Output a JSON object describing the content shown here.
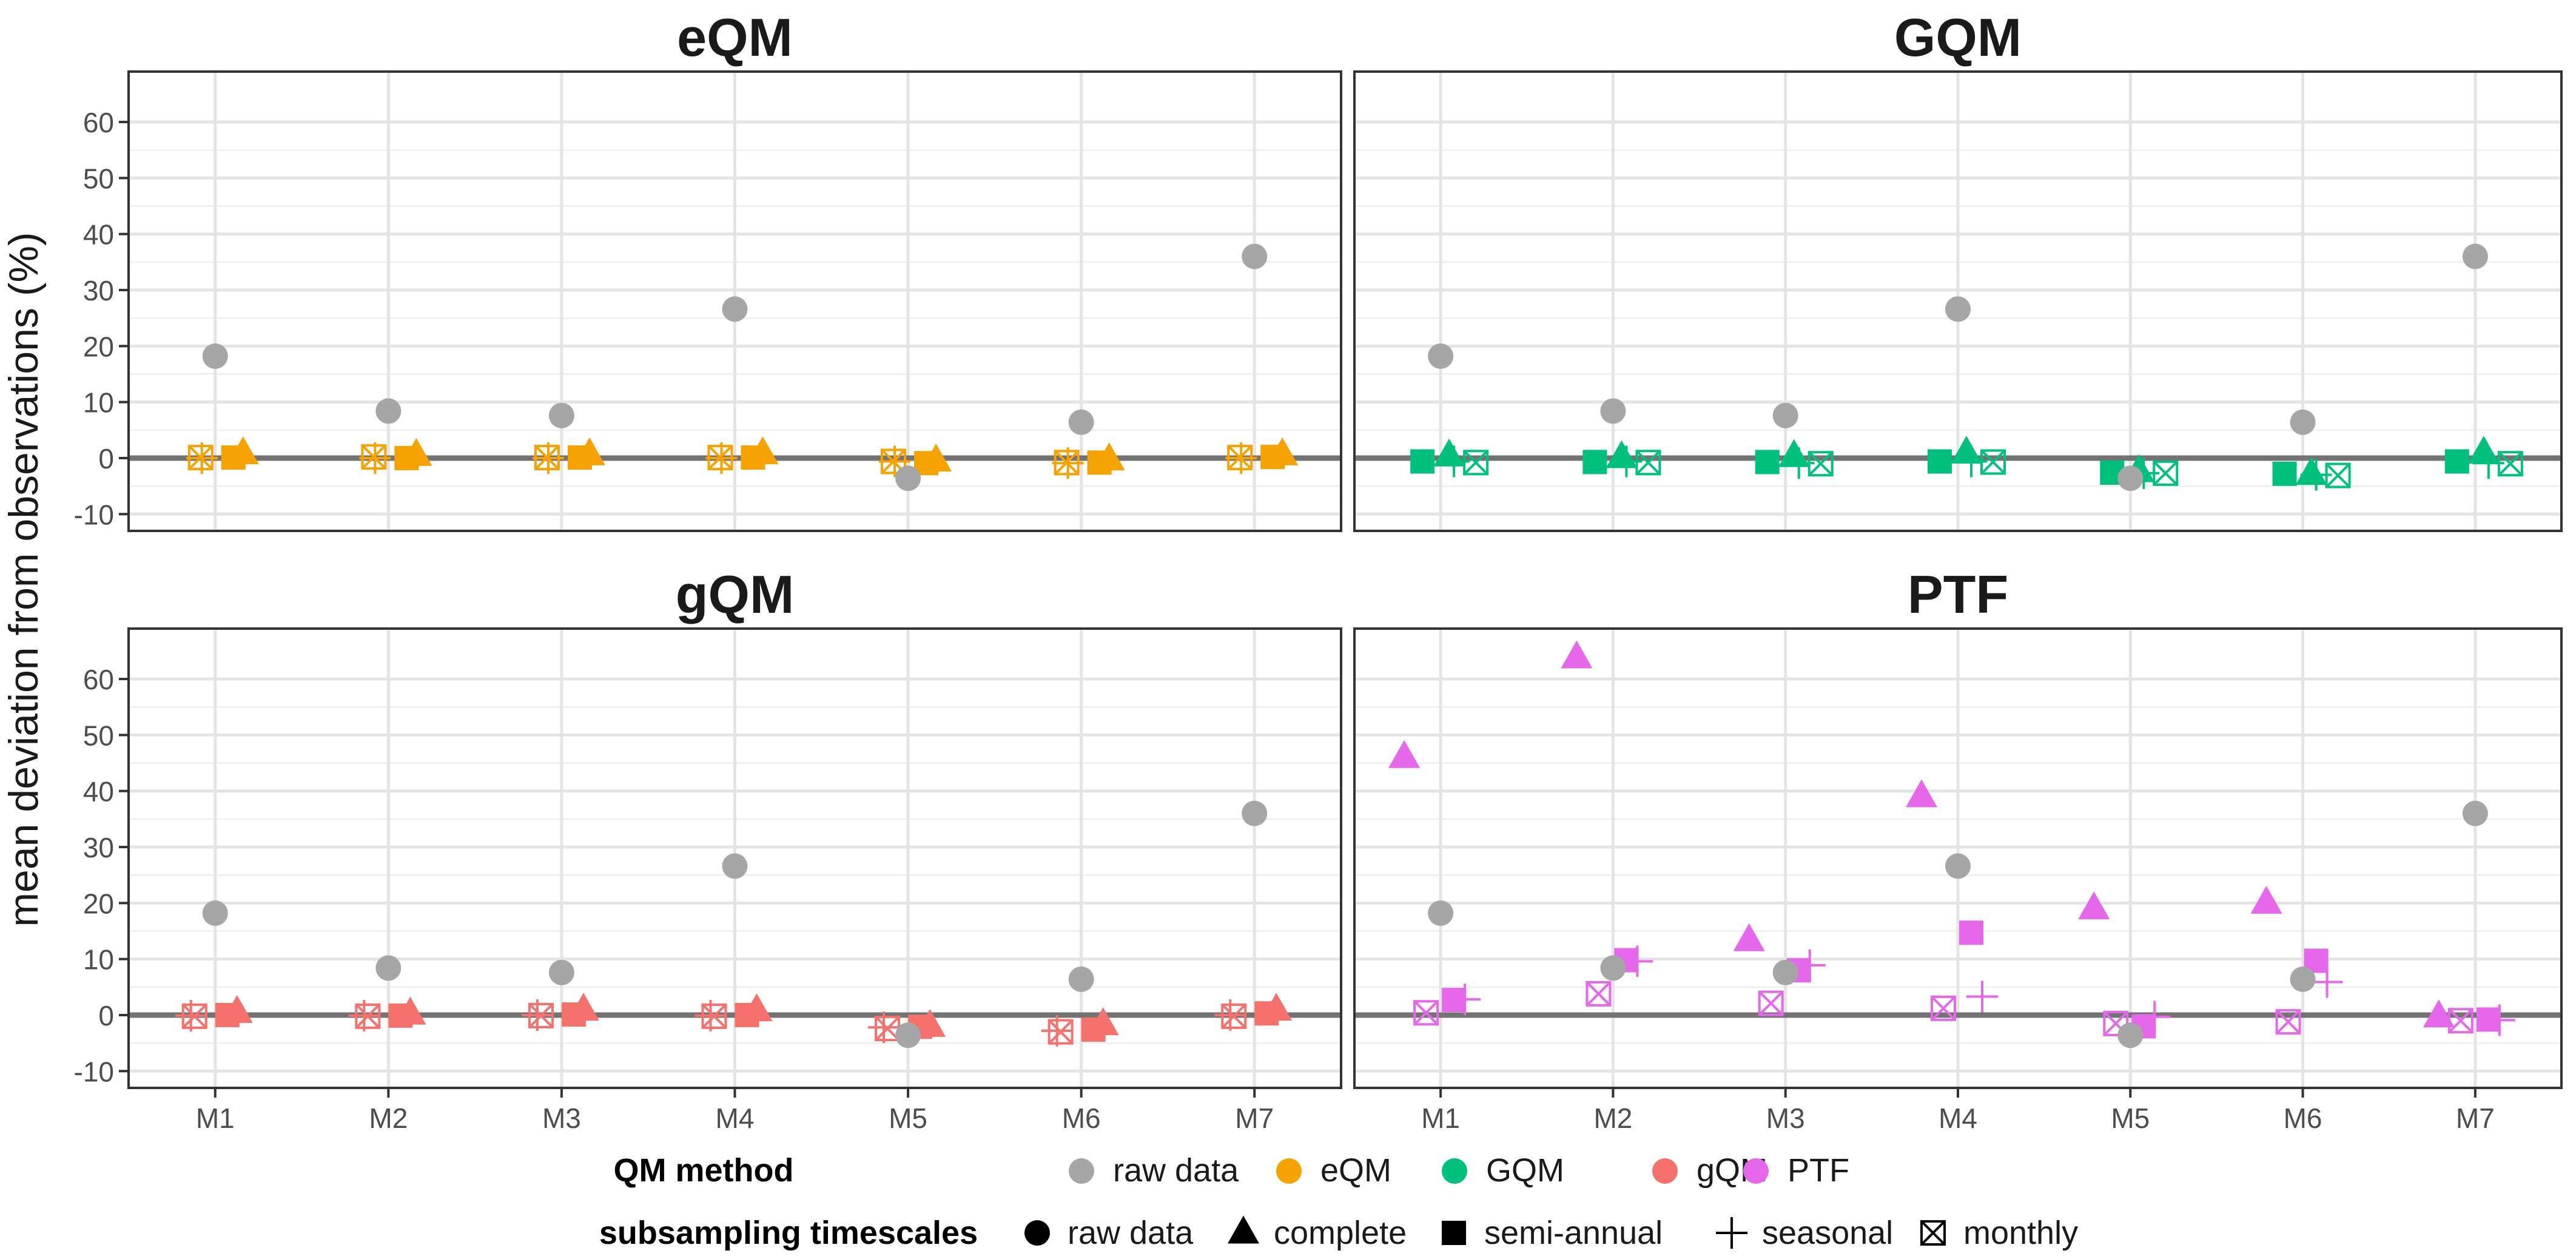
{
  "figure": {
    "ylabel": "mean deviation from observations (%)"
  },
  "legend": {
    "method_title": "QM method",
    "method_items": [
      {
        "label": "raw data",
        "color": "#a6a6a6"
      },
      {
        "label": "eQM",
        "color": "#f6a200"
      },
      {
        "label": "GQM",
        "color": "#00c07e"
      },
      {
        "label": "gQM",
        "color": "#f4726b"
      },
      {
        "label": "PTF",
        "color": "#e567ea"
      }
    ],
    "timescale_title": "subsampling timescales",
    "timescale_items": [
      {
        "label": "raw data",
        "shape": "circle"
      },
      {
        "label": "complete",
        "shape": "triangle"
      },
      {
        "label": "semi-annual",
        "shape": "square"
      },
      {
        "label": "seasonal",
        "shape": "plus"
      },
      {
        "label": "monthly",
        "shape": "boxcross"
      }
    ]
  },
  "chart_data": [
    {
      "type": "scatter",
      "title": "eQM",
      "color": "#f6a200",
      "categories": [
        "M1",
        "M2",
        "M3",
        "M4",
        "M5",
        "M6",
        "M7"
      ],
      "ylim": [
        -13,
        69
      ],
      "yticks": [
        -10,
        0,
        10,
        20,
        30,
        40,
        50,
        60
      ],
      "raw": [
        18.2,
        8.4,
        7.6,
        26.6,
        -3.6,
        6.4,
        36.0
      ],
      "points": [
        {
          "x": 1,
          "series": "complete",
          "values": [
            0.8,
            0.5,
            0.6,
            0.8,
            -0.5,
            -0.3,
            0.6
          ]
        },
        {
          "x": 2,
          "series": "semi-annual",
          "values": [
            0.1,
            0.0,
            0.1,
            0.1,
            -0.9,
            -0.8,
            0.2
          ]
        },
        {
          "x": 3,
          "series": "seasonal",
          "values": [
            0.0,
            0.0,
            0.0,
            0.0,
            -0.6,
            -0.9,
            0.0
          ]
        },
        {
          "x": 4,
          "series": "monthly",
          "values": [
            0.1,
            0.2,
            0.1,
            0.1,
            -0.6,
            -0.8,
            0.1
          ]
        }
      ]
    },
    {
      "type": "scatter",
      "title": "GQM",
      "color": "#00c07e",
      "categories": [
        "M1",
        "M2",
        "M3",
        "M4",
        "M5",
        "M6",
        "M7"
      ],
      "ylim": [
        -13,
        69
      ],
      "yticks": [
        -10,
        0,
        10,
        20,
        30,
        40,
        50,
        60
      ],
      "raw": [
        18.2,
        8.4,
        7.6,
        26.6,
        -3.6,
        6.4,
        36.0
      ],
      "points": [
        {
          "x": 1,
          "series": "complete",
          "values": [
            0.4,
            0.1,
            0.3,
            0.9,
            -2.4,
            -2.9,
            0.9
          ]
        },
        {
          "x": 2,
          "series": "semi-annual",
          "values": [
            -0.6,
            -0.7,
            -0.7,
            -0.6,
            -2.6,
            -2.8,
            -0.6
          ]
        },
        {
          "x": 3,
          "series": "seasonal",
          "values": [
            -0.6,
            -0.6,
            -0.9,
            -0.6,
            -2.7,
            -3.0,
            -0.9
          ]
        },
        {
          "x": 4,
          "series": "monthly",
          "values": [
            -0.8,
            -0.8,
            -1.0,
            -0.7,
            -2.7,
            -3.1,
            -1.0
          ]
        }
      ]
    },
    {
      "type": "scatter",
      "title": "gQM",
      "color": "#f4726b",
      "categories": [
        "M1",
        "M2",
        "M3",
        "M4",
        "M5",
        "M6",
        "M7"
      ],
      "ylim": [
        -13,
        69
      ],
      "yticks": [
        -10,
        0,
        10,
        20,
        30,
        40,
        50,
        60
      ],
      "raw": [
        18.2,
        8.4,
        7.6,
        26.6,
        -3.6,
        6.4,
        36.0
      ],
      "points": [
        {
          "x": 1,
          "series": "complete",
          "values": [
            0.5,
            0.2,
            0.9,
            0.8,
            -2.0,
            -1.7,
            0.9
          ]
        },
        {
          "x": 2,
          "series": "semi-annual",
          "values": [
            0.0,
            -0.1,
            0.1,
            0.0,
            -2.1,
            -2.6,
            0.3
          ]
        },
        {
          "x": 3,
          "series": "seasonal",
          "values": [
            -0.1,
            -0.1,
            0.0,
            -0.1,
            -2.2,
            -2.8,
            0.0
          ]
        },
        {
          "x": 4,
          "series": "monthly",
          "values": [
            -0.2,
            -0.2,
            -0.1,
            -0.2,
            -2.4,
            -3.0,
            -0.2
          ]
        }
      ]
    },
    {
      "type": "scatter",
      "title": "PTF",
      "color": "#e567ea",
      "categories": [
        "M1",
        "M2",
        "M3",
        "M4",
        "M5",
        "M6",
        "M7"
      ],
      "ylim": [
        -13,
        69
      ],
      "yticks": [
        -10,
        0,
        10,
        20,
        30,
        40,
        50,
        60
      ],
      "raw": [
        18.2,
        8.4,
        7.6,
        26.6,
        -3.6,
        6.4,
        36.0
      ],
      "points": [
        {
          "x": 1,
          "series": "complete",
          "values": [
            46.0,
            63.8,
            13.3,
            39.0,
            19.0,
            20.0,
            -0.3
          ]
        },
        {
          "x": 2,
          "series": "semi-annual",
          "values": [
            2.7,
            9.8,
            8.0,
            14.7,
            -2.0,
            9.7,
            -0.8
          ]
        },
        {
          "x": 3,
          "series": "seasonal",
          "values": [
            2.8,
            9.6,
            8.9,
            3.3,
            -0.3,
            5.9,
            -0.9
          ]
        },
        {
          "x": 4,
          "series": "monthly",
          "values": [
            0.4,
            3.8,
            2.1,
            1.2,
            -1.5,
            -1.2,
            -1.0
          ]
        }
      ]
    }
  ]
}
